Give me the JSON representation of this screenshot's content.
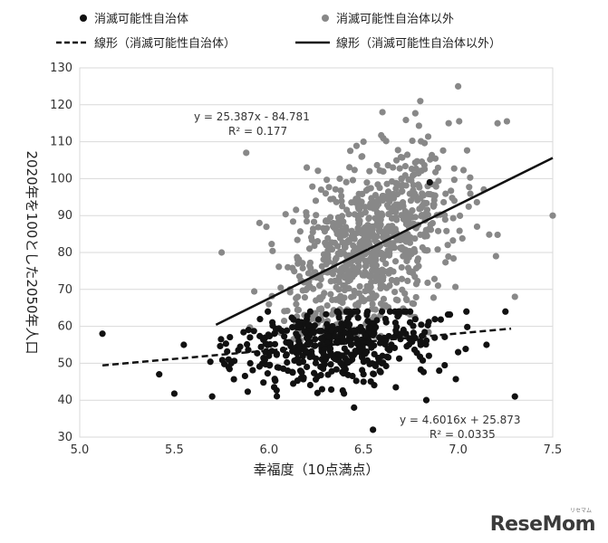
{
  "chart_data": {
    "type": "scatter",
    "xlabel": "幸福度（10点満点）",
    "ylabel": "2020年を100とした2050年人口",
    "xlim": [
      5.0,
      7.5
    ],
    "ylim": [
      30,
      130
    ],
    "xticks": [
      "5.0",
      "5.5",
      "6.0",
      "6.5",
      "7.0",
      "7.5"
    ],
    "yticks": [
      "30",
      "40",
      "50",
      "60",
      "70",
      "80",
      "90",
      "100",
      "110",
      "120",
      "130"
    ],
    "grid": "horizontal",
    "legend": {
      "placement": "top",
      "entries": [
        "消滅可能性自治体",
        "消滅可能性自治体以外",
        "線形（消滅可能性自治体）",
        "線形（消滅可能性自治体以外）"
      ]
    },
    "series": [
      {
        "name": "消滅可能性自治体",
        "color": "#111111",
        "marker": "circle",
        "sample_points": [
          [
            5.12,
            58
          ],
          [
            5.42,
            47
          ],
          [
            5.55,
            55
          ],
          [
            5.7,
            41
          ],
          [
            5.8,
            50
          ],
          [
            5.9,
            57
          ],
          [
            6.0,
            52
          ],
          [
            6.1,
            48
          ],
          [
            6.2,
            55
          ],
          [
            6.3,
            51
          ],
          [
            6.4,
            54
          ],
          [
            6.45,
            38
          ],
          [
            6.5,
            45
          ],
          [
            6.55,
            32
          ],
          [
            6.6,
            52
          ],
          [
            6.7,
            58
          ],
          [
            6.8,
            56
          ],
          [
            6.9,
            48
          ],
          [
            7.0,
            53
          ],
          [
            7.15,
            55
          ],
          [
            7.3,
            41
          ],
          [
            6.85,
            99
          ]
        ]
      },
      {
        "name": "消滅可能性自治体以外",
        "color": "#888888",
        "marker": "circle",
        "sample_points": [
          [
            5.75,
            80
          ],
          [
            5.88,
            107
          ],
          [
            5.95,
            88
          ],
          [
            6.1,
            76
          ],
          [
            6.2,
            103
          ],
          [
            6.3,
            96
          ],
          [
            6.4,
            85
          ],
          [
            6.5,
            110
          ],
          [
            6.6,
            118
          ],
          [
            6.7,
            100
          ],
          [
            6.8,
            121
          ],
          [
            6.95,
            115
          ],
          [
            7.0,
            125
          ],
          [
            7.1,
            87
          ],
          [
            7.2,
            79
          ],
          [
            7.3,
            68
          ],
          [
            7.5,
            90
          ],
          [
            6.0,
            66
          ],
          [
            6.4,
            71
          ]
        ]
      }
    ],
    "trendlines": [
      {
        "name": "線形（消滅可能性自治体）",
        "style": "dashed",
        "color": "#111111",
        "slope": 4.6016,
        "intercept": 25.873,
        "x_range": [
          5.12,
          7.28
        ],
        "equation": "y = 4.6016x + 25.873",
        "r2": "R² = 0.0335"
      },
      {
        "name": "線形（消滅可能性自治体以外）",
        "style": "solid",
        "color": "#111111",
        "slope": 25.387,
        "intercept": -84.781,
        "x_range": [
          5.72,
          7.5
        ],
        "equation": "y = 25.387x - 84.781",
        "r2": "R² = 0.177"
      }
    ]
  },
  "logo": {
    "text": "ReseMom",
    "ruby": "リセマム"
  }
}
